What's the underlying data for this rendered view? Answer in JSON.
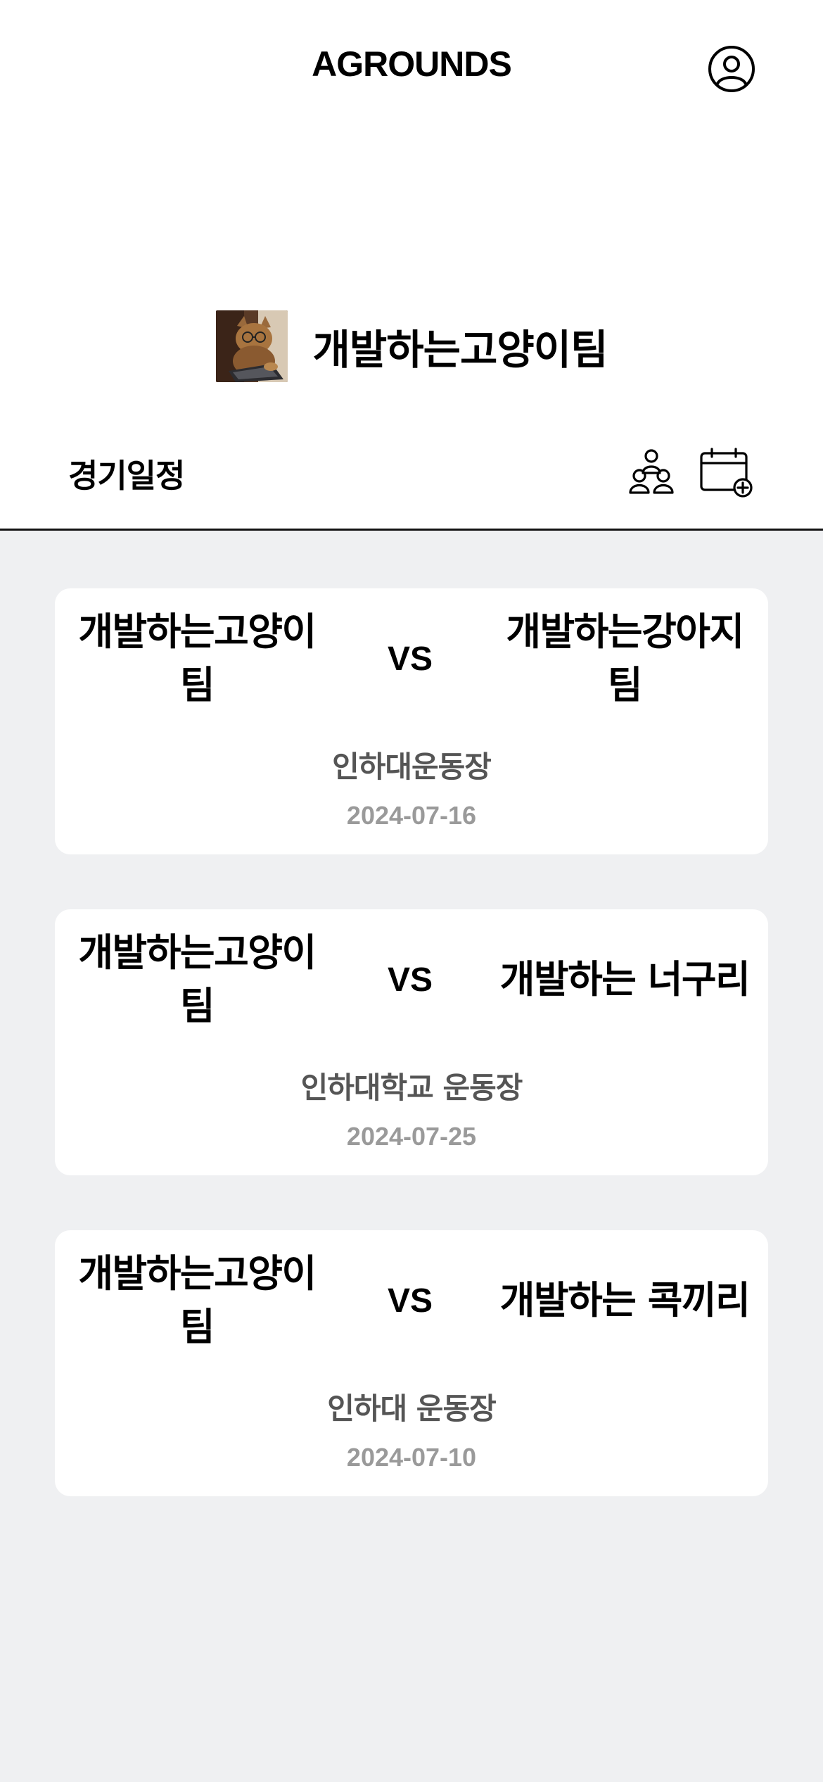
{
  "header": {
    "brand": "AGROUNDS",
    "profile_icon": "user-circle-icon"
  },
  "team": {
    "name": "개발하는고양이팀",
    "logo": "cat-at-laptop-photo"
  },
  "schedule": {
    "title": "경기일정",
    "members_icon": "team-members-icon",
    "add_icon": "calendar-add-icon"
  },
  "matches": [
    {
      "home_line1": "개발하는고양이",
      "home_line2": "팀",
      "vs": "VS",
      "away_line1": "개발하는강아지",
      "away_line2": "팀",
      "venue": "인하대운동장",
      "date": "2024-07-16"
    },
    {
      "home_line1": "개발하는고양이",
      "home_line2": "팀",
      "vs": "VS",
      "away_line1": "개발하는 너구리",
      "away_line2": "",
      "venue": "인하대학교 운동장",
      "date": "2024-07-25"
    },
    {
      "home_line1": "개발하는고양이",
      "home_line2": "팀",
      "vs": "VS",
      "away_line1": "개발하는 콕끼리",
      "away_line2": "",
      "venue": "인하대 운동장",
      "date": "2024-07-10"
    }
  ],
  "colors": {
    "background": "#eff0f2",
    "card": "#ffffff",
    "venue_text": "#555555",
    "date_text": "#9a9a9a"
  }
}
